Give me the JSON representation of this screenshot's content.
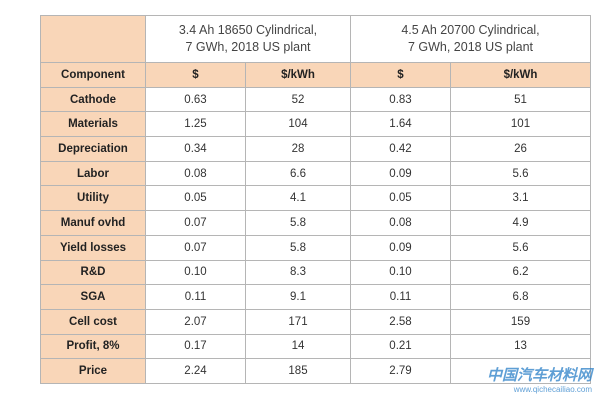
{
  "table": {
    "groups": [
      {
        "lines": [
          "3.4 Ah 18650 Cylindrical,",
          "7 GWh, 2018 US plant"
        ]
      },
      {
        "lines": [
          "4.5 Ah 20700 Cylindrical,",
          "7 GWh, 2018 US plant"
        ]
      }
    ],
    "header": [
      "Component",
      "$",
      "$/kWh",
      "$",
      "$/kWh"
    ],
    "rows": [
      [
        "Cathode",
        "0.63",
        "52",
        "0.83",
        "51"
      ],
      [
        "Materials",
        "1.25",
        "104",
        "1.64",
        "101"
      ],
      [
        "Depreciation",
        "0.34",
        "28",
        "0.42",
        "26"
      ],
      [
        "Labor",
        "0.08",
        "6.6",
        "0.09",
        "5.6"
      ],
      [
        "Utility",
        "0.05",
        "4.1",
        "0.05",
        "3.1"
      ],
      [
        "Manuf ovhd",
        "0.07",
        "5.8",
        "0.08",
        "4.9"
      ],
      [
        "Yield losses",
        "0.07",
        "5.8",
        "0.09",
        "5.6"
      ],
      [
        "R&D",
        "0.10",
        "8.3",
        "0.10",
        "6.2"
      ],
      [
        "SGA",
        "0.11",
        "9.1",
        "0.11",
        "6.8"
      ],
      [
        "Cell cost",
        "2.07",
        "171",
        "2.58",
        "159"
      ],
      [
        "Profit, 8%",
        "0.17",
        "14",
        "0.21",
        "13"
      ],
      [
        "Price",
        "2.24",
        "185",
        "2.79",
        ""
      ]
    ]
  },
  "watermark": {
    "title": "中国汽车材料网",
    "url": "www.qichecailiao.com"
  }
}
